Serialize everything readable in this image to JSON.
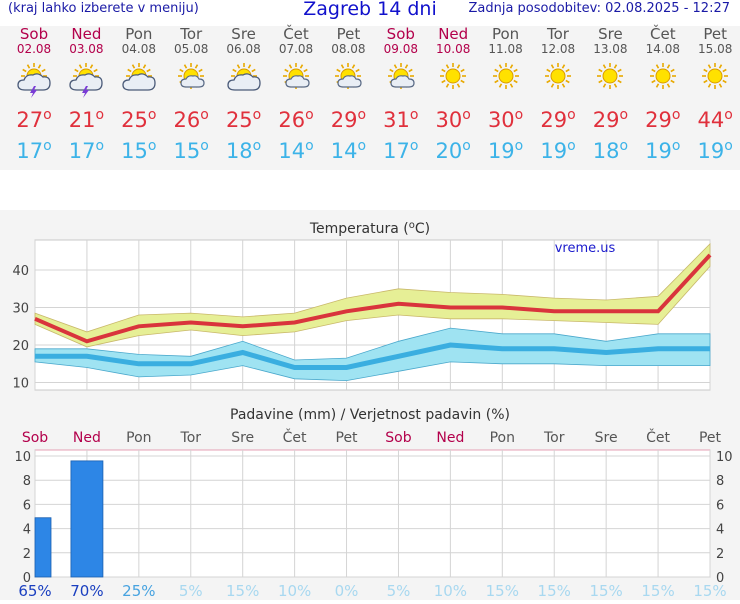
{
  "header": {
    "left_note": "(kraj lahko izberete v meniju)",
    "title": "Zagreb 14 dni",
    "updated": "Zadnja posodobitev: 02.08.2025 - 12:27"
  },
  "days": [
    {
      "name": "Sob",
      "date": "02.08",
      "weekend": true,
      "icon": "sun-cloud-thunderstorm-icon",
      "max": "27",
      "min": "17"
    },
    {
      "name": "Ned",
      "date": "03.08",
      "weekend": true,
      "icon": "sun-cloud-thunderstorm-icon",
      "max": "21",
      "min": "17"
    },
    {
      "name": "Pon",
      "date": "04.08",
      "weekend": false,
      "icon": "sun-cloud-icon",
      "max": "25",
      "min": "15"
    },
    {
      "name": "Tor",
      "date": "05.08",
      "weekend": false,
      "icon": "sun-small-cloud-icon",
      "max": "26",
      "min": "15"
    },
    {
      "name": "Sre",
      "date": "06.08",
      "weekend": false,
      "icon": "sun-cloud-icon",
      "max": "25",
      "min": "18"
    },
    {
      "name": "Čet",
      "date": "07.08",
      "weekend": false,
      "icon": "sun-small-cloud-icon",
      "max": "26",
      "min": "14"
    },
    {
      "name": "Pet",
      "date": "08.08",
      "weekend": false,
      "icon": "sun-small-cloud-icon",
      "max": "29",
      "min": "14"
    },
    {
      "name": "Sob",
      "date": "09.08",
      "weekend": true,
      "icon": "sun-small-cloud-icon",
      "max": "31",
      "min": "17"
    },
    {
      "name": "Ned",
      "date": "10.08",
      "weekend": true,
      "icon": "sun-icon",
      "max": "30",
      "min": "20"
    },
    {
      "name": "Pon",
      "date": "11.08",
      "weekend": false,
      "icon": "sun-icon",
      "max": "30",
      "min": "19"
    },
    {
      "name": "Tor",
      "date": "12.08",
      "weekend": false,
      "icon": "sun-icon",
      "max": "29",
      "min": "19"
    },
    {
      "name": "Sre",
      "date": "13.08",
      "weekend": false,
      "icon": "sun-icon",
      "max": "29",
      "min": "18"
    },
    {
      "name": "Čet",
      "date": "14.08",
      "weekend": false,
      "icon": "sun-icon",
      "max": "29",
      "min": "19"
    },
    {
      "name": "Pet",
      "date": "15.08",
      "weekend": false,
      "icon": "sun-icon",
      "max": "44",
      "min": "19"
    }
  ],
  "degree_symbol": "o",
  "chart_data": [
    {
      "type": "line",
      "title": "Temperatura (oC)",
      "title_main": "Temperatura (",
      "title_unit": "C)",
      "watermark": "vreme.us",
      "categories": [
        "Sob",
        "Ned",
        "Pon",
        "Tor",
        "Sre",
        "Čet",
        "Pet",
        "Sob",
        "Ned",
        "Pon",
        "Tor",
        "Sre",
        "Čet",
        "Pet"
      ],
      "yticks": [
        10,
        20,
        30,
        40
      ],
      "ylim": [
        8,
        48
      ],
      "grid": true,
      "series": [
        {
          "name": "max",
          "color": "#d9343c",
          "values": [
            27,
            21,
            25,
            26,
            25,
            26,
            29,
            31,
            30,
            30,
            29,
            29,
            29,
            44
          ]
        },
        {
          "name": "min",
          "color": "#3aaee0",
          "values": [
            17,
            17,
            15,
            15,
            18,
            14,
            14,
            17,
            20,
            19,
            19,
            18,
            19,
            19
          ]
        }
      ],
      "bands": [
        {
          "color": "#e6ef96",
          "upper": [
            28.5,
            23.5,
            28,
            28.5,
            27.5,
            28.5,
            32.5,
            35,
            34,
            33.5,
            32.5,
            32,
            33,
            47
          ],
          "lower": [
            25.5,
            19.5,
            22.5,
            24,
            22.5,
            23.5,
            26.5,
            28,
            27,
            27,
            26.5,
            26,
            25.5,
            41
          ]
        },
        {
          "color": "#9fe3f2",
          "upper": [
            19,
            19,
            17.5,
            17,
            21,
            16,
            16.5,
            21,
            24.5,
            23,
            23,
            21,
            23,
            23
          ]
        },
        {
          "color": "#9fe3f2",
          "lower": [
            15.5,
            14,
            11.5,
            12,
            14.5,
            11,
            10.5,
            13,
            15.5,
            15,
            15,
            14.5,
            14.5,
            14.5
          ]
        }
      ]
    },
    {
      "type": "bar",
      "title": "Padavine (mm) / Verjetnost padavin (%)",
      "categories": [
        "Sob",
        "Ned",
        "Pon",
        "Tor",
        "Sre",
        "Čet",
        "Pet",
        "Sob",
        "Ned",
        "Pon",
        "Tor",
        "Sre",
        "Čet",
        "Pet"
      ],
      "weekend": [
        true,
        true,
        false,
        false,
        false,
        false,
        false,
        true,
        true,
        false,
        false,
        false,
        false,
        false
      ],
      "values": [
        4.9,
        9.6,
        0,
        0,
        0,
        0,
        0,
        0,
        0,
        0,
        0,
        0,
        0,
        0
      ],
      "probability": [
        "65%",
        "70%",
        "25%",
        "5%",
        "15%",
        "10%",
        "0%",
        "5%",
        "10%",
        "15%",
        "15%",
        "15%",
        "15%",
        "15%"
      ],
      "yticks": [
        0,
        2,
        4,
        6,
        8,
        10
      ],
      "ylim": [
        0,
        10.5
      ],
      "bar_color": "#2d86e6",
      "grid": true
    }
  ]
}
